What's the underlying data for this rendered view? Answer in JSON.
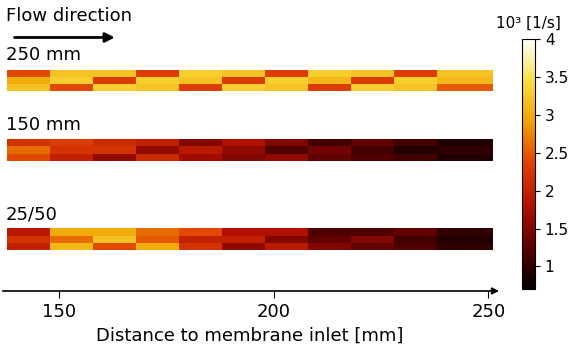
{
  "chart_data": {
    "type": "heatmap",
    "xlabel": "Distance to membrane inlet [mm]",
    "xlim": [
      137,
      252
    ],
    "xticks": [
      150,
      200,
      250
    ],
    "annotations": [
      "Flow direction"
    ],
    "colorbar": {
      "label": "10³ [1/s]",
      "range": [
        0.7,
        4
      ],
      "ticks": [
        1,
        1.5,
        2,
        2.5,
        3,
        3.5,
        4
      ]
    },
    "x_edges": [
      138,
      148,
      158,
      168,
      178,
      188,
      198,
      208,
      218,
      228,
      238,
      251
    ],
    "panels": [
      {
        "title": "250 mm",
        "cells": [
          [
            3.2,
            2.4,
            3.3,
            3.2,
            2.3,
            3.3,
            3.2,
            2.3,
            3.3,
            3.2,
            2.5
          ],
          [
            3.0,
            3.3,
            2.3,
            3.3,
            3.2,
            2.3,
            3.3,
            3.1,
            2.3,
            3.3,
            3.1
          ],
          [
            2.4,
            3.2,
            3.2,
            2.3,
            3.3,
            3.2,
            2.3,
            3.3,
            3.2,
            2.3,
            3.2
          ]
        ]
      },
      {
        "title": "150 mm",
        "cells": [
          [
            2.4,
            2.0,
            1.6,
            2.1,
            1.7,
            1.5,
            1.6,
            1.3,
            1.2,
            1.1,
            0.9
          ],
          [
            2.6,
            2.2,
            2.2,
            1.6,
            1.9,
            1.6,
            1.2,
            1.4,
            1.1,
            0.9,
            1.0
          ],
          [
            2.2,
            2.3,
            2.1,
            2.0,
            1.5,
            1.8,
            1.5,
            1.1,
            1.3,
            1.1,
            0.9
          ]
        ]
      },
      {
        "title": "25/50",
        "cells": [
          [
            2.0,
            3.1,
            2.4,
            3.0,
            2.2,
            1.6,
            1.9,
            1.5,
            1.3,
            1.2,
            1.0
          ],
          [
            2.2,
            2.6,
            3.2,
            2.5,
            2.0,
            2.0,
            1.5,
            1.3,
            1.5,
            1.1,
            0.9
          ],
          [
            1.9,
            3.0,
            3.0,
            2.6,
            2.4,
            1.8,
            1.8,
            1.2,
            1.2,
            1.3,
            1.0
          ]
        ]
      }
    ]
  }
}
